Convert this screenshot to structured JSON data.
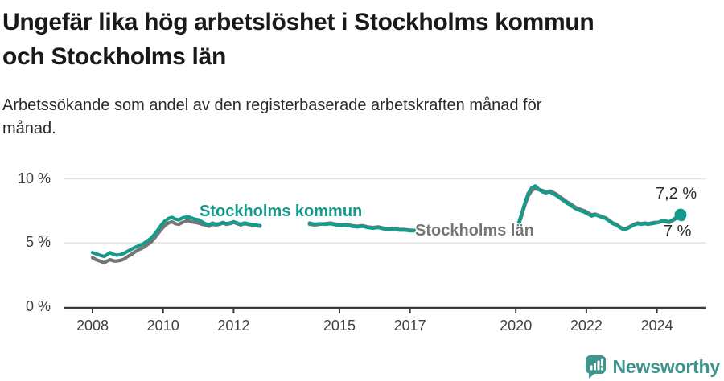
{
  "title": {
    "line1": "Ungefär lika hög arbetslöshet i Stockholms kommun",
    "line2": "och Stockholms län"
  },
  "subtitle": {
    "line1": "Arbetssökande som andel av den registerbaserade arbetskraften månad för",
    "line2": "månad."
  },
  "branding": {
    "name": "Newsworthy",
    "icon": "newsworthy-speech-bubble-bar-chart-icon",
    "color": "#3f948d"
  },
  "colors": {
    "kommun_line": "#149b8b",
    "lan_line": "#757575",
    "axis": "#3a3a3a",
    "gridline": "#e3e3e3"
  },
  "chart_data": {
    "type": "line",
    "title": "Ungefär lika hög arbetslöshet i Stockholms kommun och Stockholms län",
    "subtitle": "Arbetssökande som andel av den registerbaserade arbetskraften månad för månad.",
    "unit": "%",
    "grid": true,
    "legend_position": "inline-labels",
    "x_axis": {
      "ticks": [
        "2008",
        "2010",
        "2012",
        "2015",
        "2017",
        "2020",
        "2022",
        "2024"
      ],
      "range": [
        2007.2,
        2025.4
      ]
    },
    "y_axis": {
      "ticks": [
        {
          "value": 0,
          "label": "0 %"
        },
        {
          "value": 5,
          "label": "5 %"
        },
        {
          "value": 10,
          "label": "10 %"
        }
      ],
      "range": [
        0,
        10.5
      ]
    },
    "series": [
      {
        "name": "Stockholms län",
        "color": "#757575",
        "end_label": "7 %",
        "end_value": 7.0,
        "dot_radius": 5,
        "segments": [
          [
            [
              2008.0,
              3.85
            ],
            [
              2008.1,
              3.7
            ],
            [
              2008.2,
              3.6
            ],
            [
              2008.33,
              3.45
            ],
            [
              2008.42,
              3.6
            ],
            [
              2008.5,
              3.7
            ],
            [
              2008.6,
              3.6
            ],
            [
              2008.7,
              3.6
            ],
            [
              2008.8,
              3.65
            ],
            [
              2008.9,
              3.75
            ],
            [
              2009.0,
              3.95
            ],
            [
              2009.1,
              4.1
            ],
            [
              2009.2,
              4.3
            ],
            [
              2009.33,
              4.5
            ],
            [
              2009.45,
              4.65
            ],
            [
              2009.55,
              4.85
            ],
            [
              2009.65,
              5.05
            ],
            [
              2009.75,
              5.35
            ],
            [
              2009.85,
              5.7
            ],
            [
              2009.95,
              6.05
            ],
            [
              2010.05,
              6.35
            ],
            [
              2010.15,
              6.55
            ],
            [
              2010.25,
              6.65
            ],
            [
              2010.35,
              6.5
            ],
            [
              2010.45,
              6.45
            ],
            [
              2010.55,
              6.6
            ],
            [
              2010.7,
              6.75
            ],
            [
              2010.8,
              6.65
            ],
            [
              2010.9,
              6.6
            ],
            [
              2011.0,
              6.55
            ],
            [
              2011.1,
              6.45
            ],
            [
              2011.2,
              6.4
            ],
            [
              2011.3,
              6.3
            ],
            [
              2011.4,
              6.45
            ],
            [
              2011.5,
              6.4
            ],
            [
              2011.6,
              6.45
            ],
            [
              2011.7,
              6.55
            ],
            [
              2011.8,
              6.45
            ],
            [
              2011.9,
              6.5
            ],
            [
              2012.0,
              6.6
            ],
            [
              2012.1,
              6.5
            ],
            [
              2012.2,
              6.4
            ],
            [
              2012.3,
              6.5
            ],
            [
              2012.4,
              6.45
            ],
            [
              2012.5,
              6.4
            ],
            [
              2012.6,
              6.35
            ],
            [
              2012.75,
              6.3
            ]
          ],
          [
            [
              2014.15,
              6.45
            ],
            [
              2014.3,
              6.4
            ],
            [
              2014.45,
              6.45
            ],
            [
              2014.6,
              6.5
            ],
            [
              2014.75,
              6.55
            ],
            [
              2014.9,
              6.45
            ],
            [
              2015.05,
              6.4
            ],
            [
              2015.2,
              6.45
            ],
            [
              2015.35,
              6.35
            ],
            [
              2015.5,
              6.3
            ],
            [
              2015.65,
              6.35
            ],
            [
              2015.8,
              6.25
            ],
            [
              2015.95,
              6.2
            ],
            [
              2016.1,
              6.25
            ],
            [
              2016.25,
              6.15
            ],
            [
              2016.4,
              6.1
            ],
            [
              2016.55,
              6.15
            ],
            [
              2016.7,
              6.05
            ],
            [
              2016.85,
              6.05
            ],
            [
              2017.0,
              6.0
            ],
            [
              2017.12,
              6.0
            ]
          ],
          [
            [
              2020.05,
              6.2
            ],
            [
              2020.15,
              7.0
            ],
            [
              2020.25,
              7.9
            ],
            [
              2020.35,
              8.65
            ],
            [
              2020.45,
              9.1
            ],
            [
              2020.55,
              9.25
            ],
            [
              2020.65,
              9.15
            ],
            [
              2020.75,
              9.1
            ],
            [
              2020.85,
              9.0
            ],
            [
              2020.95,
              9.05
            ],
            [
              2021.05,
              8.95
            ],
            [
              2021.15,
              8.8
            ],
            [
              2021.25,
              8.6
            ],
            [
              2021.35,
              8.4
            ],
            [
              2021.45,
              8.2
            ],
            [
              2021.55,
              8.05
            ],
            [
              2021.65,
              7.85
            ],
            [
              2021.75,
              7.7
            ],
            [
              2021.85,
              7.6
            ],
            [
              2021.95,
              7.5
            ],
            [
              2022.05,
              7.35
            ],
            [
              2022.15,
              7.2
            ],
            [
              2022.25,
              7.25
            ],
            [
              2022.35,
              7.15
            ],
            [
              2022.45,
              7.05
            ],
            [
              2022.55,
              6.95
            ],
            [
              2022.65,
              6.75
            ],
            [
              2022.75,
              6.55
            ],
            [
              2022.85,
              6.45
            ],
            [
              2022.95,
              6.25
            ],
            [
              2023.05,
              6.1
            ],
            [
              2023.15,
              6.15
            ],
            [
              2023.25,
              6.3
            ],
            [
              2023.35,
              6.45
            ],
            [
              2023.45,
              6.55
            ],
            [
              2023.55,
              6.5
            ],
            [
              2023.65,
              6.55
            ],
            [
              2023.75,
              6.5
            ],
            [
              2023.85,
              6.55
            ],
            [
              2023.95,
              6.6
            ],
            [
              2024.05,
              6.6
            ],
            [
              2024.15,
              6.7
            ],
            [
              2024.25,
              6.65
            ],
            [
              2024.35,
              6.6
            ],
            [
              2024.45,
              6.75
            ],
            [
              2024.55,
              6.9
            ],
            [
              2024.7,
              7.0
            ]
          ]
        ]
      },
      {
        "name": "Stockholms kommun",
        "color": "#149b8b",
        "end_label": "7,2 %",
        "end_value": 7.2,
        "dot_radius": 7.5,
        "segments": [
          [
            [
              2008.0,
              4.25
            ],
            [
              2008.1,
              4.15
            ],
            [
              2008.2,
              4.05
            ],
            [
              2008.33,
              3.95
            ],
            [
              2008.42,
              4.1
            ],
            [
              2008.5,
              4.25
            ],
            [
              2008.6,
              4.1
            ],
            [
              2008.7,
              4.05
            ],
            [
              2008.8,
              4.1
            ],
            [
              2008.9,
              4.2
            ],
            [
              2009.0,
              4.35
            ],
            [
              2009.1,
              4.5
            ],
            [
              2009.2,
              4.65
            ],
            [
              2009.33,
              4.8
            ],
            [
              2009.45,
              4.95
            ],
            [
              2009.55,
              5.15
            ],
            [
              2009.65,
              5.35
            ],
            [
              2009.75,
              5.65
            ],
            [
              2009.85,
              6.0
            ],
            [
              2009.95,
              6.4
            ],
            [
              2010.05,
              6.7
            ],
            [
              2010.15,
              6.9
            ],
            [
              2010.25,
              7.0
            ],
            [
              2010.35,
              6.85
            ],
            [
              2010.45,
              6.8
            ],
            [
              2010.55,
              6.95
            ],
            [
              2010.7,
              7.05
            ],
            [
              2010.8,
              6.95
            ],
            [
              2010.9,
              6.85
            ],
            [
              2011.0,
              6.8
            ],
            [
              2011.1,
              6.65
            ],
            [
              2011.2,
              6.5
            ],
            [
              2011.3,
              6.4
            ],
            [
              2011.4,
              6.55
            ],
            [
              2011.5,
              6.45
            ],
            [
              2011.6,
              6.5
            ],
            [
              2011.7,
              6.6
            ],
            [
              2011.8,
              6.5
            ],
            [
              2011.9,
              6.55
            ],
            [
              2012.0,
              6.65
            ],
            [
              2012.1,
              6.55
            ],
            [
              2012.2,
              6.45
            ],
            [
              2012.3,
              6.55
            ],
            [
              2012.4,
              6.5
            ],
            [
              2012.5,
              6.45
            ],
            [
              2012.6,
              6.4
            ],
            [
              2012.75,
              6.35
            ]
          ],
          [
            [
              2014.15,
              6.55
            ],
            [
              2014.3,
              6.45
            ],
            [
              2014.45,
              6.5
            ],
            [
              2014.6,
              6.45
            ],
            [
              2014.75,
              6.5
            ],
            [
              2014.9,
              6.4
            ],
            [
              2015.05,
              6.35
            ],
            [
              2015.2,
              6.4
            ],
            [
              2015.35,
              6.3
            ],
            [
              2015.5,
              6.25
            ],
            [
              2015.65,
              6.3
            ],
            [
              2015.8,
              6.2
            ],
            [
              2015.95,
              6.15
            ],
            [
              2016.1,
              6.2
            ],
            [
              2016.25,
              6.1
            ],
            [
              2016.4,
              6.05
            ],
            [
              2016.55,
              6.1
            ],
            [
              2016.7,
              6.0
            ],
            [
              2016.85,
              6.0
            ],
            [
              2017.0,
              5.95
            ],
            [
              2017.12,
              5.95
            ]
          ],
          [
            [
              2020.05,
              6.3
            ],
            [
              2020.15,
              7.15
            ],
            [
              2020.25,
              8.05
            ],
            [
              2020.35,
              8.85
            ],
            [
              2020.45,
              9.3
            ],
            [
              2020.55,
              9.45
            ],
            [
              2020.65,
              9.2
            ],
            [
              2020.75,
              9.0
            ],
            [
              2020.85,
              8.9
            ],
            [
              2020.95,
              9.0
            ],
            [
              2021.05,
              8.85
            ],
            [
              2021.15,
              8.7
            ],
            [
              2021.25,
              8.5
            ],
            [
              2021.35,
              8.3
            ],
            [
              2021.45,
              8.1
            ],
            [
              2021.55,
              7.95
            ],
            [
              2021.65,
              7.75
            ],
            [
              2021.75,
              7.6
            ],
            [
              2021.85,
              7.5
            ],
            [
              2021.95,
              7.4
            ],
            [
              2022.05,
              7.25
            ],
            [
              2022.15,
              7.1
            ],
            [
              2022.25,
              7.2
            ],
            [
              2022.35,
              7.1
            ],
            [
              2022.45,
              7.0
            ],
            [
              2022.55,
              6.9
            ],
            [
              2022.65,
              6.7
            ],
            [
              2022.75,
              6.5
            ],
            [
              2022.85,
              6.4
            ],
            [
              2022.95,
              6.2
            ],
            [
              2023.05,
              6.05
            ],
            [
              2023.15,
              6.1
            ],
            [
              2023.25,
              6.25
            ],
            [
              2023.35,
              6.4
            ],
            [
              2023.45,
              6.5
            ],
            [
              2023.55,
              6.45
            ],
            [
              2023.65,
              6.5
            ],
            [
              2023.75,
              6.45
            ],
            [
              2023.85,
              6.5
            ],
            [
              2023.95,
              6.55
            ],
            [
              2024.05,
              6.6
            ],
            [
              2024.15,
              6.75
            ],
            [
              2024.25,
              6.7
            ],
            [
              2024.35,
              6.65
            ],
            [
              2024.45,
              6.8
            ],
            [
              2024.55,
              7.0
            ],
            [
              2024.67,
              7.2
            ]
          ]
        ]
      }
    ]
  }
}
